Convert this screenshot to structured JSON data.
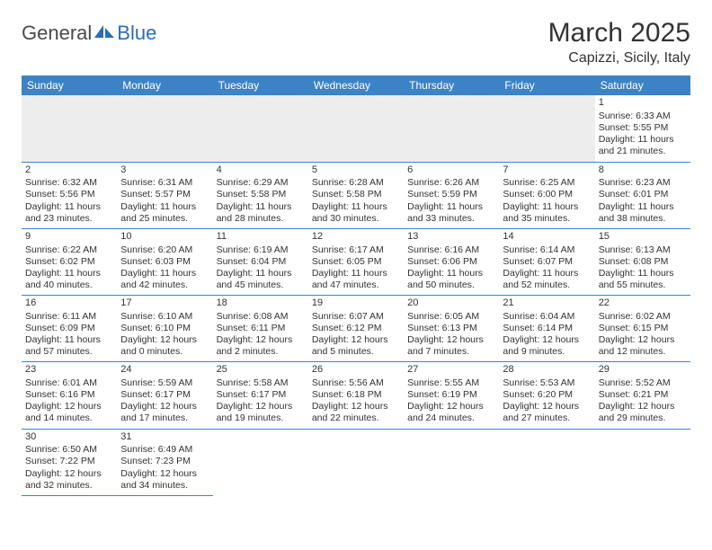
{
  "logo": {
    "general": "General",
    "blue": "Blue"
  },
  "title": "March 2025",
  "location": "Capizzi, Sicily, Italy",
  "colors": {
    "header_bg": "#3c83c5",
    "header_text": "#ffffff",
    "accent_blue": "#2a6db8",
    "text": "#333333",
    "empty_bg": "#ededed",
    "border": "#3c83c5"
  },
  "dayNames": [
    "Sunday",
    "Monday",
    "Tuesday",
    "Wednesday",
    "Thursday",
    "Friday",
    "Saturday"
  ],
  "weeks": [
    [
      null,
      null,
      null,
      null,
      null,
      null,
      {
        "n": "1",
        "sr": "Sunrise: 6:33 AM",
        "ss": "Sunset: 5:55 PM",
        "d1": "Daylight: 11 hours",
        "d2": "and 21 minutes."
      }
    ],
    [
      {
        "n": "2",
        "sr": "Sunrise: 6:32 AM",
        "ss": "Sunset: 5:56 PM",
        "d1": "Daylight: 11 hours",
        "d2": "and 23 minutes."
      },
      {
        "n": "3",
        "sr": "Sunrise: 6:31 AM",
        "ss": "Sunset: 5:57 PM",
        "d1": "Daylight: 11 hours",
        "d2": "and 25 minutes."
      },
      {
        "n": "4",
        "sr": "Sunrise: 6:29 AM",
        "ss": "Sunset: 5:58 PM",
        "d1": "Daylight: 11 hours",
        "d2": "and 28 minutes."
      },
      {
        "n": "5",
        "sr": "Sunrise: 6:28 AM",
        "ss": "Sunset: 5:58 PM",
        "d1": "Daylight: 11 hours",
        "d2": "and 30 minutes."
      },
      {
        "n": "6",
        "sr": "Sunrise: 6:26 AM",
        "ss": "Sunset: 5:59 PM",
        "d1": "Daylight: 11 hours",
        "d2": "and 33 minutes."
      },
      {
        "n": "7",
        "sr": "Sunrise: 6:25 AM",
        "ss": "Sunset: 6:00 PM",
        "d1": "Daylight: 11 hours",
        "d2": "and 35 minutes."
      },
      {
        "n": "8",
        "sr": "Sunrise: 6:23 AM",
        "ss": "Sunset: 6:01 PM",
        "d1": "Daylight: 11 hours",
        "d2": "and 38 minutes."
      }
    ],
    [
      {
        "n": "9",
        "sr": "Sunrise: 6:22 AM",
        "ss": "Sunset: 6:02 PM",
        "d1": "Daylight: 11 hours",
        "d2": "and 40 minutes."
      },
      {
        "n": "10",
        "sr": "Sunrise: 6:20 AM",
        "ss": "Sunset: 6:03 PM",
        "d1": "Daylight: 11 hours",
        "d2": "and 42 minutes."
      },
      {
        "n": "11",
        "sr": "Sunrise: 6:19 AM",
        "ss": "Sunset: 6:04 PM",
        "d1": "Daylight: 11 hours",
        "d2": "and 45 minutes."
      },
      {
        "n": "12",
        "sr": "Sunrise: 6:17 AM",
        "ss": "Sunset: 6:05 PM",
        "d1": "Daylight: 11 hours",
        "d2": "and 47 minutes."
      },
      {
        "n": "13",
        "sr": "Sunrise: 6:16 AM",
        "ss": "Sunset: 6:06 PM",
        "d1": "Daylight: 11 hours",
        "d2": "and 50 minutes."
      },
      {
        "n": "14",
        "sr": "Sunrise: 6:14 AM",
        "ss": "Sunset: 6:07 PM",
        "d1": "Daylight: 11 hours",
        "d2": "and 52 minutes."
      },
      {
        "n": "15",
        "sr": "Sunrise: 6:13 AM",
        "ss": "Sunset: 6:08 PM",
        "d1": "Daylight: 11 hours",
        "d2": "and 55 minutes."
      }
    ],
    [
      {
        "n": "16",
        "sr": "Sunrise: 6:11 AM",
        "ss": "Sunset: 6:09 PM",
        "d1": "Daylight: 11 hours",
        "d2": "and 57 minutes."
      },
      {
        "n": "17",
        "sr": "Sunrise: 6:10 AM",
        "ss": "Sunset: 6:10 PM",
        "d1": "Daylight: 12 hours",
        "d2": "and 0 minutes."
      },
      {
        "n": "18",
        "sr": "Sunrise: 6:08 AM",
        "ss": "Sunset: 6:11 PM",
        "d1": "Daylight: 12 hours",
        "d2": "and 2 minutes."
      },
      {
        "n": "19",
        "sr": "Sunrise: 6:07 AM",
        "ss": "Sunset: 6:12 PM",
        "d1": "Daylight: 12 hours",
        "d2": "and 5 minutes."
      },
      {
        "n": "20",
        "sr": "Sunrise: 6:05 AM",
        "ss": "Sunset: 6:13 PM",
        "d1": "Daylight: 12 hours",
        "d2": "and 7 minutes."
      },
      {
        "n": "21",
        "sr": "Sunrise: 6:04 AM",
        "ss": "Sunset: 6:14 PM",
        "d1": "Daylight: 12 hours",
        "d2": "and 9 minutes."
      },
      {
        "n": "22",
        "sr": "Sunrise: 6:02 AM",
        "ss": "Sunset: 6:15 PM",
        "d1": "Daylight: 12 hours",
        "d2": "and 12 minutes."
      }
    ],
    [
      {
        "n": "23",
        "sr": "Sunrise: 6:01 AM",
        "ss": "Sunset: 6:16 PM",
        "d1": "Daylight: 12 hours",
        "d2": "and 14 minutes."
      },
      {
        "n": "24",
        "sr": "Sunrise: 5:59 AM",
        "ss": "Sunset: 6:17 PM",
        "d1": "Daylight: 12 hours",
        "d2": "and 17 minutes."
      },
      {
        "n": "25",
        "sr": "Sunrise: 5:58 AM",
        "ss": "Sunset: 6:17 PM",
        "d1": "Daylight: 12 hours",
        "d2": "and 19 minutes."
      },
      {
        "n": "26",
        "sr": "Sunrise: 5:56 AM",
        "ss": "Sunset: 6:18 PM",
        "d1": "Daylight: 12 hours",
        "d2": "and 22 minutes."
      },
      {
        "n": "27",
        "sr": "Sunrise: 5:55 AM",
        "ss": "Sunset: 6:19 PM",
        "d1": "Daylight: 12 hours",
        "d2": "and 24 minutes."
      },
      {
        "n": "28",
        "sr": "Sunrise: 5:53 AM",
        "ss": "Sunset: 6:20 PM",
        "d1": "Daylight: 12 hours",
        "d2": "and 27 minutes."
      },
      {
        "n": "29",
        "sr": "Sunrise: 5:52 AM",
        "ss": "Sunset: 6:21 PM",
        "d1": "Daylight: 12 hours",
        "d2": "and 29 minutes."
      }
    ],
    [
      {
        "n": "30",
        "sr": "Sunrise: 6:50 AM",
        "ss": "Sunset: 7:22 PM",
        "d1": "Daylight: 12 hours",
        "d2": "and 32 minutes."
      },
      {
        "n": "31",
        "sr": "Sunrise: 6:49 AM",
        "ss": "Sunset: 7:23 PM",
        "d1": "Daylight: 12 hours",
        "d2": "and 34 minutes."
      },
      null,
      null,
      null,
      null,
      null
    ]
  ]
}
